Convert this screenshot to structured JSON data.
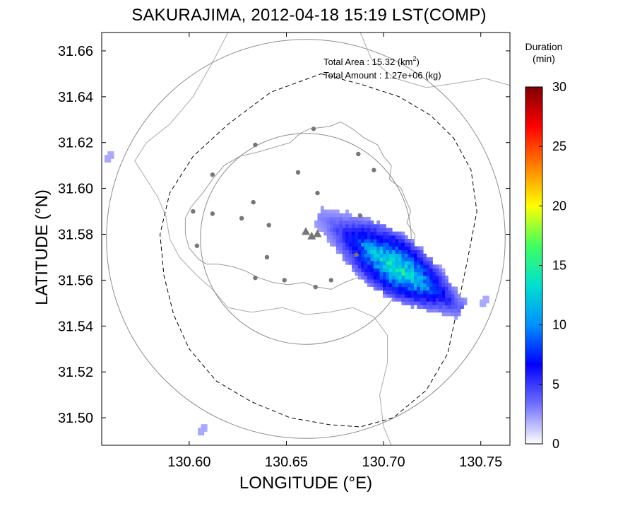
{
  "chart_data": {
    "type": "heatmap",
    "title": "SAKURAJIMA, 2012-04-18 15:19 LST(COMP)",
    "xlabel": "LONGITUDE (°E)",
    "ylabel": "LATITUDE (°N)",
    "xlim": [
      130.555,
      130.765
    ],
    "ylim": [
      31.488,
      31.668
    ],
    "xticks": [
      "130.60",
      "130.65",
      "130.70",
      "130.75"
    ],
    "yticks": [
      "31.50",
      "31.52",
      "31.54",
      "31.56",
      "31.58",
      "31.60",
      "31.62",
      "31.64",
      "31.66"
    ],
    "grid": false,
    "annotations": {
      "area_label": "Total Area   : 15.32 (km",
      "area_sup": "2",
      "area_close": ")",
      "amount": "Total Amount : 1.27e+06 (kg)"
    },
    "colorbar": {
      "title_line1": "Duration",
      "title_line2": "(min)",
      "min": 0,
      "max": 30,
      "ticks": [
        "0",
        "5",
        "10",
        "15",
        "20",
        "25",
        "30"
      ],
      "colors": [
        "#ffffff",
        "#7070ff",
        "#0000ff",
        "#0090ff",
        "#00e0d0",
        "#40ff60",
        "#ffff00",
        "#ff8000",
        "#ff0000",
        "#800000"
      ]
    },
    "vent_triangles": [
      {
        "lon": 130.66,
        "lat": 31.581
      },
      {
        "lon": 130.663,
        "lat": 31.579
      },
      {
        "lon": 130.666,
        "lat": 31.58
      }
    ],
    "stations": [
      [
        130.664,
        31.626
      ],
      [
        130.634,
        31.619
      ],
      [
        130.687,
        31.615
      ],
      [
        130.612,
        31.606
      ],
      [
        130.656,
        31.607
      ],
      [
        130.695,
        31.608
      ],
      [
        130.666,
        31.598
      ],
      [
        130.602,
        31.59
      ],
      [
        130.612,
        31.589
      ],
      [
        130.633,
        31.594
      ],
      [
        130.627,
        31.587
      ],
      [
        130.641,
        31.584
      ],
      [
        130.688,
        31.588
      ],
      [
        130.604,
        31.575
      ],
      [
        130.64,
        31.57
      ],
      [
        130.634,
        31.561
      ],
      [
        130.649,
        31.56
      ],
      [
        130.665,
        31.557
      ],
      [
        130.673,
        31.56
      ],
      [
        130.686,
        31.571
      ]
    ],
    "range_circles": [
      {
        "lon": 130.66,
        "lat": 31.578,
        "radius_deg_lat": 0.046
      },
      {
        "lon": 130.66,
        "lat": 31.578,
        "radius_deg_lat": 0.087
      }
    ],
    "outliers": [
      {
        "lon": 130.558,
        "lat": 31.613,
        "value": 2
      },
      {
        "lon": 130.606,
        "lat": 31.494,
        "value": 2
      },
      {
        "lon": 130.751,
        "lat": 31.55,
        "value": 2
      }
    ],
    "plume": {
      "axis_start": [
        130.668,
        31.586
      ],
      "axis_end": [
        130.737,
        31.548
      ],
      "peak_value": 15,
      "units": "min"
    }
  }
}
